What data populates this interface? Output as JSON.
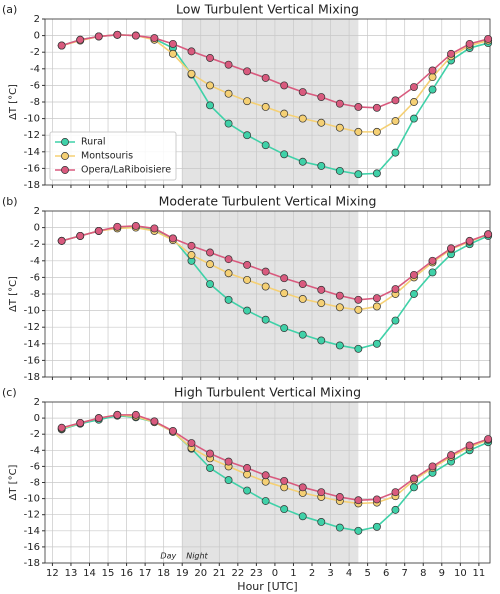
{
  "chart_data": [
    {
      "type": "line",
      "panel_label": "(a)",
      "title": "Low Turbulent Vertical Mixing",
      "ylabel": "ΔT [°C]",
      "x": [
        12.5,
        13.5,
        14.5,
        15.5,
        16.5,
        17.5,
        18.5,
        19.5,
        20.5,
        21.5,
        22.5,
        23.5,
        24.5,
        25.5,
        26.5,
        27.5,
        28.5,
        29.5,
        30.5,
        31.5,
        32.5,
        33.5,
        34.5,
        35.5
      ],
      "xlim": [
        11.6,
        35.6
      ],
      "xticks": [
        12,
        13,
        14,
        15,
        16,
        17,
        18,
        19,
        20,
        21,
        22,
        23,
        24,
        25,
        26,
        27,
        28,
        29,
        30,
        31,
        32,
        33,
        34,
        35
      ],
      "ylim": [
        -18,
        2
      ],
      "yticks": [
        -18,
        -16,
        -14,
        -12,
        -10,
        -8,
        -6,
        -4,
        -2,
        0,
        2
      ],
      "grid": true,
      "shade": [
        19,
        28.5
      ],
      "legend": "lower left",
      "series": [
        {
          "name": "Rural",
          "color": "#3fd1a8",
          "values": [
            -1.2,
            -0.5,
            -0.1,
            0.1,
            0.0,
            -0.4,
            -1.5,
            -4.7,
            -8.4,
            -10.6,
            -12.0,
            -13.2,
            -14.3,
            -15.2,
            -15.7,
            -16.3,
            -16.7,
            -16.6,
            -14.1,
            -10.0,
            -6.5,
            -3.0,
            -1.5,
            -0.9
          ]
        },
        {
          "name": "Montsouris",
          "color": "#f5d074",
          "values": [
            -1.2,
            -0.6,
            -0.1,
            0.1,
            0.0,
            -0.5,
            -2.2,
            -4.6,
            -6.0,
            -7.0,
            -7.9,
            -8.6,
            -9.4,
            -10.0,
            -10.5,
            -11.1,
            -11.6,
            -11.6,
            -10.3,
            -8.0,
            -5.0,
            -2.5,
            -1.2,
            -0.6
          ]
        },
        {
          "name": "Opera/LaRiboisiere",
          "color": "#d95a7e",
          "values": [
            -1.2,
            -0.5,
            -0.1,
            0.1,
            0.0,
            -0.3,
            -1.0,
            -1.9,
            -2.7,
            -3.5,
            -4.3,
            -5.1,
            -6.0,
            -6.8,
            -7.4,
            -8.2,
            -8.6,
            -8.7,
            -7.8,
            -6.2,
            -4.2,
            -2.2,
            -1.0,
            -0.4
          ]
        }
      ]
    },
    {
      "type": "line",
      "panel_label": "(b)",
      "title": "Moderate Turbulent Vertical Mixing",
      "ylabel": "ΔT [°C]",
      "x": [
        12.5,
        13.5,
        14.5,
        15.5,
        16.5,
        17.5,
        18.5,
        19.5,
        20.5,
        21.5,
        22.5,
        23.5,
        24.5,
        25.5,
        26.5,
        27.5,
        28.5,
        29.5,
        30.5,
        31.5,
        32.5,
        33.5,
        34.5,
        35.5
      ],
      "xlim": [
        11.6,
        35.6
      ],
      "xticks": [
        12,
        13,
        14,
        15,
        16,
        17,
        18,
        19,
        20,
        21,
        22,
        23,
        24,
        25,
        26,
        27,
        28,
        29,
        30,
        31,
        32,
        33,
        34,
        35
      ],
      "ylim": [
        -18,
        2
      ],
      "yticks": [
        -18,
        -16,
        -14,
        -12,
        -10,
        -8,
        -6,
        -4,
        -2,
        0,
        2
      ],
      "grid": true,
      "shade": [
        19,
        28.5
      ],
      "series": [
        {
          "name": "Rural",
          "color": "#3fd1a8",
          "values": [
            -1.6,
            -1.0,
            -0.4,
            0.0,
            0.1,
            -0.3,
            -1.3,
            -4.0,
            -6.8,
            -8.7,
            -10.0,
            -11.1,
            -12.1,
            -12.9,
            -13.6,
            -14.2,
            -14.6,
            -14.0,
            -11.2,
            -8.0,
            -5.4,
            -3.2,
            -2.0,
            -1.0
          ]
        },
        {
          "name": "Montsouris",
          "color": "#f5d074",
          "values": [
            -1.6,
            -1.0,
            -0.4,
            -0.1,
            0.0,
            -0.4,
            -1.5,
            -3.3,
            -4.4,
            -5.5,
            -6.3,
            -7.1,
            -7.9,
            -8.6,
            -9.1,
            -9.6,
            -9.9,
            -9.5,
            -8.0,
            -6.0,
            -4.2,
            -2.6,
            -1.7,
            -0.8
          ]
        },
        {
          "name": "Opera/LaRiboisiere",
          "color": "#d95a7e",
          "values": [
            -1.6,
            -1.0,
            -0.4,
            0.1,
            0.2,
            -0.1,
            -1.3,
            -2.2,
            -3.0,
            -3.8,
            -4.5,
            -5.3,
            -6.1,
            -6.8,
            -7.5,
            -8.2,
            -8.7,
            -8.5,
            -7.4,
            -5.7,
            -4.0,
            -2.5,
            -1.6,
            -0.8
          ]
        }
      ]
    },
    {
      "type": "line",
      "panel_label": "(c)",
      "title": "High Turbulent Vertical Mixing",
      "ylabel": "ΔT [°C]",
      "xlabel": "Hour [UTC]",
      "annotations": [
        "Day",
        "Night"
      ],
      "x": [
        12.5,
        13.5,
        14.5,
        15.5,
        16.5,
        17.5,
        18.5,
        19.5,
        20.5,
        21.5,
        22.5,
        23.5,
        24.5,
        25.5,
        26.5,
        27.5,
        28.5,
        29.5,
        30.5,
        31.5,
        32.5,
        33.5,
        34.5,
        35.5
      ],
      "xlim": [
        11.6,
        35.6
      ],
      "xticks": [
        12,
        13,
        14,
        15,
        16,
        17,
        18,
        19,
        20,
        21,
        22,
        23,
        {
          "value": 24,
          "label": "0"
        },
        {
          "value": 25,
          "label": "1"
        },
        {
          "value": 26,
          "label": "2"
        },
        {
          "value": 27,
          "label": "3"
        },
        {
          "value": 28,
          "label": "4"
        },
        {
          "value": 29,
          "label": "5"
        },
        {
          "value": 30,
          "label": "6"
        },
        {
          "value": 31,
          "label": "7"
        },
        {
          "value": 32,
          "label": "8"
        },
        {
          "value": 33,
          "label": "9"
        },
        {
          "value": 34,
          "label": "10"
        },
        {
          "value": 35,
          "label": "11"
        }
      ],
      "ylim": [
        -18,
        2
      ],
      "yticks": [
        -18,
        -16,
        -14,
        -12,
        -10,
        -8,
        -6,
        -4,
        -2,
        0,
        2
      ],
      "grid": true,
      "shade": [
        19,
        28.5
      ],
      "series": [
        {
          "name": "Rural",
          "color": "#3fd1a8",
          "values": [
            -1.4,
            -0.7,
            -0.2,
            0.3,
            0.1,
            -0.5,
            -1.7,
            -3.8,
            -6.2,
            -7.7,
            -9.0,
            -10.3,
            -11.3,
            -12.2,
            -12.9,
            -13.6,
            -14.0,
            -13.5,
            -11.4,
            -8.6,
            -6.8,
            -5.4,
            -4.0,
            -3.0
          ]
        },
        {
          "name": "Montsouris",
          "color": "#f5d074",
          "values": [
            -1.3,
            -0.6,
            0.0,
            0.4,
            0.2,
            -0.5,
            -1.7,
            -3.7,
            -5.0,
            -6.0,
            -7.0,
            -7.9,
            -8.6,
            -9.3,
            -9.8,
            -10.3,
            -10.6,
            -10.5,
            -9.7,
            -7.7,
            -6.2,
            -4.8,
            -3.6,
            -2.7
          ]
        },
        {
          "name": "Opera/LaRiboisiere",
          "color": "#d95a7e",
          "values": [
            -1.2,
            -0.6,
            0.0,
            0.4,
            0.4,
            -0.4,
            -1.6,
            -3.1,
            -4.4,
            -5.4,
            -6.2,
            -7.1,
            -7.8,
            -8.6,
            -9.2,
            -9.8,
            -10.2,
            -10.1,
            -9.2,
            -7.5,
            -6.0,
            -4.6,
            -3.4,
            -2.6
          ]
        }
      ]
    }
  ]
}
